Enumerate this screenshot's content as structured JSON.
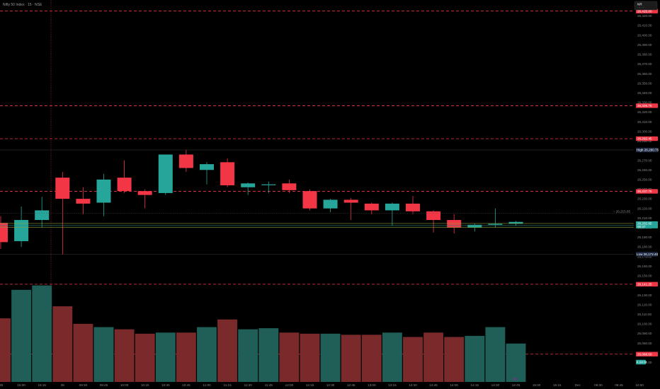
{
  "header": {
    "symbol_title": "Nifty 50 Index · 15 · NSE",
    "top_right_button": "NR",
    "top_right_sub": "··· ···"
  },
  "colors": {
    "up": "#26a69a",
    "down": "#f23645",
    "vol_up": "#1f5f58",
    "vol_down": "#7a2a2a",
    "level_line": "#f23645",
    "grid": "#111111"
  },
  "chart_data": {
    "type": "candlestick",
    "y_axis_ticks": [
      "26,420.00",
      "26,410.00",
      "26,400.00",
      "26,390.00",
      "26,380.00",
      "26,370.00",
      "26,360.00",
      "26,350.00",
      "26,340.00",
      "26,330.00",
      "26,320.00",
      "26,310.00",
      "26,300.00",
      "26,290.00",
      "26,280.00",
      "26,270.00",
      "26,260.00",
      "26,250.00",
      "26,240.00",
      "26,230.00",
      "26,220.00",
      "26,210.00",
      "26,200.00",
      "26,190.00",
      "26,180.00",
      "26,170.00",
      "26,160.00",
      "26,150.00",
      "26,140.00",
      "26,130.00",
      "26,120.00",
      "26,110.00",
      "26,100.00",
      "26,090.00",
      "26,080.00",
      "26,070.00",
      "26,060.00"
    ],
    "x_axis_ticks": [
      ":45",
      "15:00",
      "15:15",
      "28",
      "09:30",
      "09:45",
      "10:00",
      "10:15",
      "10:30",
      "10:45",
      "11:00",
      "11:15",
      "11:30",
      "11:45",
      "12:00",
      "12:15",
      "12:30",
      "12:45",
      "13:00",
      "13:15",
      "13:30",
      "13:45",
      "14:00",
      "14:15",
      "14:30",
      "14:45",
      "15:00",
      "15:15",
      "Dec",
      "09:30",
      "09:45",
      "10:00"
    ],
    "price_levels": [
      {
        "label": "26,425.00"
      },
      {
        "label": "26,326.75"
      },
      {
        "label": "26,292.45"
      },
      {
        "label": "26,237.75"
      },
      {
        "label": "26,141.25"
      },
      {
        "label": "26,068.60"
      }
    ],
    "high_label": "High",
    "high_value": "26,280.75",
    "low_label": "Low",
    "low_value": "26,172.40",
    "current_price": "26,202.95",
    "current_sub": "00:47",
    "prev_close_tag": "↑ 26,215.05",
    "volume_tag": "4.04 M",
    "candles": [
      {
        "t": ":45",
        "o": 26205,
        "h": 26212,
        "l": 26178,
        "c": 26185,
        "v": 58
      },
      {
        "t": "15:00",
        "o": 26186,
        "h": 26222,
        "l": 26180,
        "c": 26208,
        "v": 84
      },
      {
        "t": "15:15",
        "o": 26208,
        "h": 26232,
        "l": 26200,
        "c": 26218,
        "v": 88
      },
      {
        "t": "28",
        "o": 26252,
        "h": 26258,
        "l": 26172,
        "c": 26230,
        "v": 69
      },
      {
        "t": "09:30",
        "o": 26230,
        "h": 26242,
        "l": 26214,
        "c": 26225,
        "v": 53
      },
      {
        "t": "09:45",
        "o": 26226,
        "h": 26256,
        "l": 26212,
        "c": 26250,
        "v": 50
      },
      {
        "t": "10:00",
        "o": 26252,
        "h": 26270,
        "l": 26236,
        "c": 26238,
        "v": 48
      },
      {
        "t": "10:15",
        "o": 26238,
        "h": 26240,
        "l": 26220,
        "c": 26234,
        "v": 44
      },
      {
        "t": "10:30",
        "o": 26236,
        "h": 26276,
        "l": 26234,
        "c": 26276,
        "v": 45
      },
      {
        "t": "10:45",
        "o": 26276,
        "h": 26281,
        "l": 26258,
        "c": 26262,
        "v": 45
      },
      {
        "t": "11:00",
        "o": 26260,
        "h": 26268,
        "l": 26245,
        "c": 26266,
        "v": 50
      },
      {
        "t": "11:15",
        "o": 26268,
        "h": 26272,
        "l": 26242,
        "c": 26244,
        "v": 57
      },
      {
        "t": "11:30",
        "o": 26242,
        "h": 26247,
        "l": 26234,
        "c": 26246,
        "v": 48
      },
      {
        "t": "11:45",
        "o": 26245,
        "h": 26248,
        "l": 26236,
        "c": 26245,
        "v": 49
      },
      {
        "t": "12:00",
        "o": 26246,
        "h": 26250,
        "l": 26236,
        "c": 26239,
        "v": 45
      },
      {
        "t": "12:15",
        "o": 26238,
        "h": 26240,
        "l": 26218,
        "c": 26220,
        "v": 44
      },
      {
        "t": "12:30",
        "o": 26220,
        "h": 26230,
        "l": 26216,
        "c": 26229,
        "v": 44
      },
      {
        "t": "12:45",
        "o": 26229,
        "h": 26231,
        "l": 26208,
        "c": 26226,
        "v": 43
      },
      {
        "t": "13:00",
        "o": 26225,
        "h": 26226,
        "l": 26214,
        "c": 26218,
        "v": 43
      },
      {
        "t": "13:15",
        "o": 26218,
        "h": 26226,
        "l": 26202,
        "c": 26225,
        "v": 45
      },
      {
        "t": "13:30",
        "o": 26225,
        "h": 26233,
        "l": 26214,
        "c": 26217,
        "v": 41
      },
      {
        "t": "13:45",
        "o": 26217,
        "h": 26218,
        "l": 26195,
        "c": 26208,
        "v": 45
      },
      {
        "t": "14:00",
        "o": 26208,
        "h": 26214,
        "l": 26194,
        "c": 26200,
        "v": 41
      },
      {
        "t": "14:15",
        "o": 26200,
        "h": 26204,
        "l": 26196,
        "c": 26203,
        "v": 42
      },
      {
        "t": "14:30",
        "o": 26203,
        "h": 26220,
        "l": 26200,
        "c": 26204,
        "v": 50
      },
      {
        "t": "14:45",
        "o": 26204,
        "h": 26207,
        "l": 26202,
        "c": 26206,
        "v": 35
      }
    ]
  }
}
